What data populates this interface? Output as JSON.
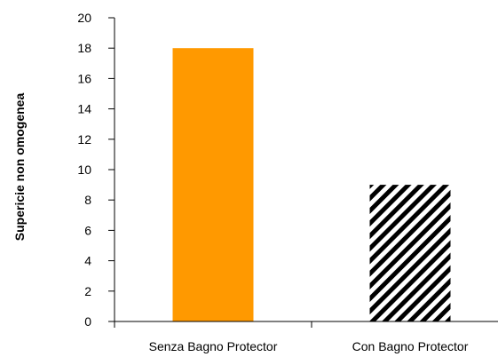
{
  "chart_data": {
    "type": "bar",
    "title": "",
    "xlabel": "",
    "ylabel": "Supericie non omogenea",
    "categories": [
      "Senza Bagno Protector",
      "Con Bagno Protector"
    ],
    "values": [
      18,
      9
    ],
    "ylim": [
      0,
      20
    ],
    "yticks": [
      0,
      2,
      4,
      6,
      8,
      10,
      12,
      14,
      16,
      18,
      20
    ],
    "ytick_labels": [
      "0",
      "2",
      "4",
      "6",
      "8",
      "10",
      "12",
      "14",
      "16",
      "18",
      "20"
    ],
    "bar_styles": [
      {
        "fill": "solid",
        "color": "#FF9900"
      },
      {
        "fill": "diagonal-stripes",
        "color": "#000000"
      }
    ],
    "grid": false,
    "legend": "none"
  }
}
